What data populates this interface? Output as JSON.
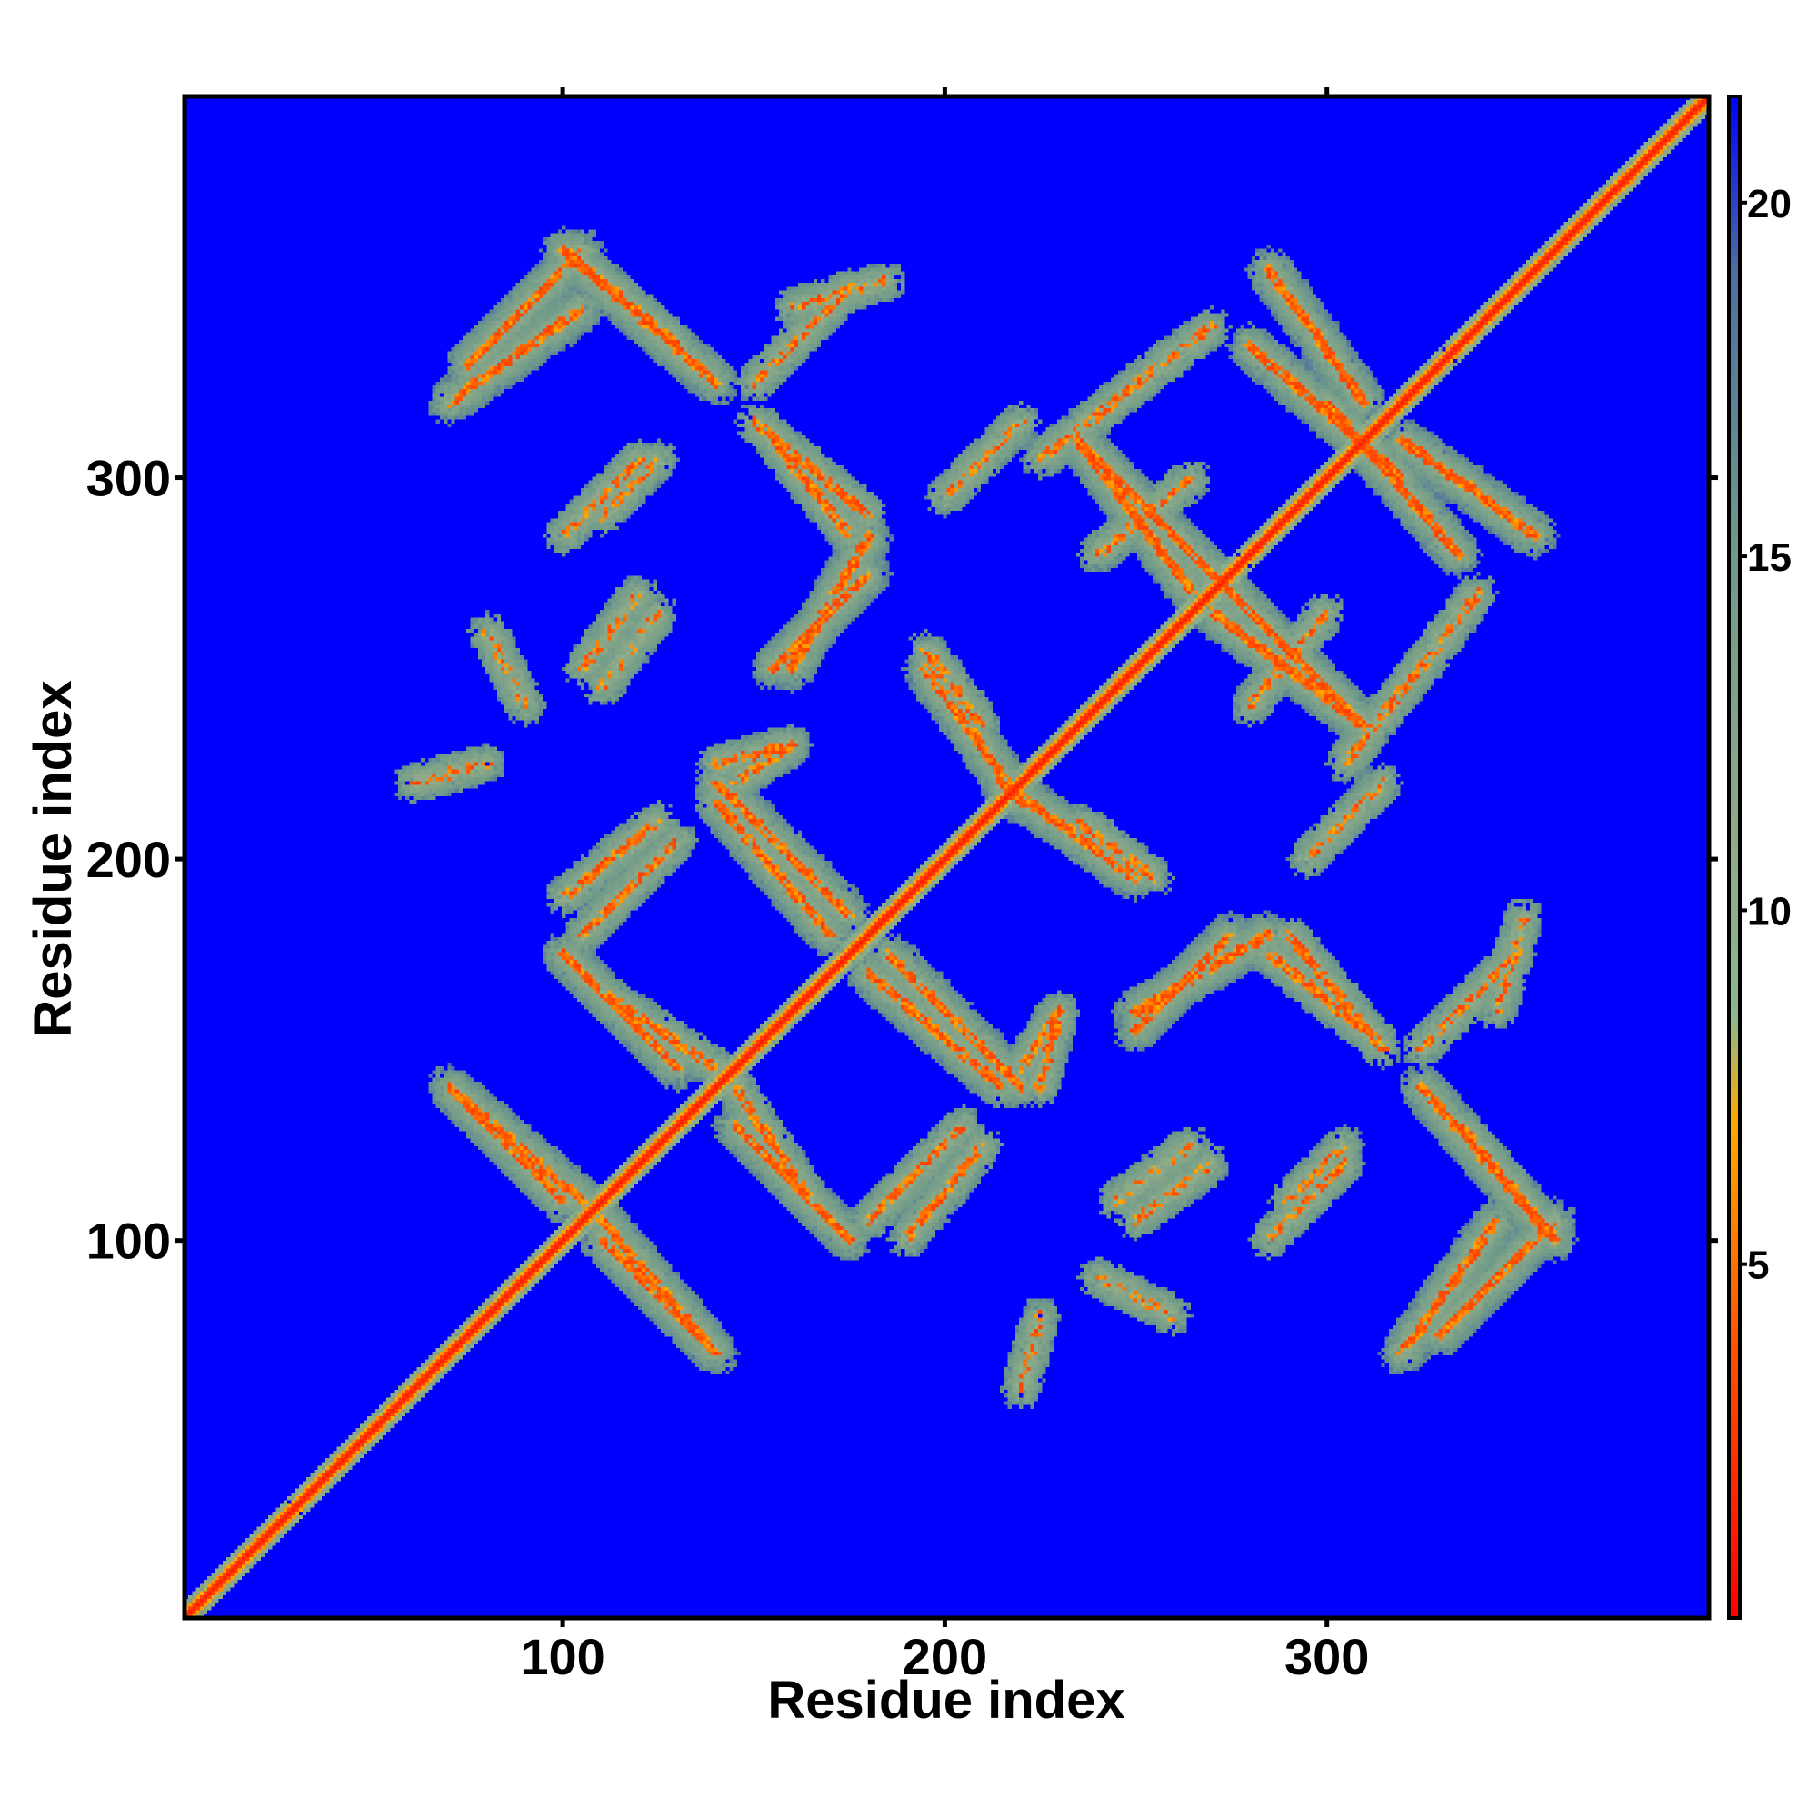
{
  "chart_data": {
    "type": "heatmap",
    "title": "",
    "xlabel": "Residue index",
    "ylabel": "Residue index",
    "xlim": [
      1,
      400
    ],
    "ylim": [
      1,
      400
    ],
    "x_ticks": [
      100,
      200,
      300
    ],
    "y_ticks": [
      100,
      200,
      300
    ],
    "x_tick_labels": [
      "100",
      "200",
      "300"
    ],
    "y_tick_labels": [
      "100",
      "200",
      "300"
    ],
    "colorbar": {
      "range": [
        0,
        21.5
      ],
      "ticks": [
        5,
        10,
        15,
        20
      ],
      "tick_labels": [
        "5",
        "10",
        "15",
        "20"
      ],
      "stops": [
        {
          "value": 0,
          "color": "#ff0000"
        },
        {
          "value": 4,
          "color": "#ff5500"
        },
        {
          "value": 7,
          "color": "#ffaa00"
        },
        {
          "value": 8.5,
          "color": "#8cb88c"
        },
        {
          "value": 11,
          "color": "#8faa88"
        },
        {
          "value": 15,
          "color": "#6f9a8a"
        },
        {
          "value": 19,
          "color": "#4f6fa0"
        },
        {
          "value": 21.5,
          "color": "#0000ff"
        }
      ]
    },
    "background_value": 21.5,
    "diagonal": {
      "core_value": 1.5,
      "halfwidth": 4
    },
    "contact_bands": [
      {
        "center": [
          75,
          330
        ],
        "end": [
          105,
          360
        ],
        "strength": 0.8
      },
      {
        "center": [
          100,
          360
        ],
        "end": [
          130,
          335
        ],
        "strength": 0.7
      },
      {
        "center": [
          160,
          345
        ],
        "end": [
          185,
          352
        ],
        "strength": 0.4
      },
      {
        "center": [
          110,
          290
        ],
        "end": [
          125,
          305
        ],
        "strength": 0.4
      },
      {
        "center": [
          150,
          315
        ],
        "end": [
          180,
          290
        ],
        "strength": 0.7
      },
      {
        "center": [
          155,
          250
        ],
        "end": [
          180,
          275
        ],
        "strength": 0.8
      },
      {
        "center": [
          195,
          255
        ],
        "end": [
          210,
          235
        ],
        "strength": 0.6
      },
      {
        "center": [
          140,
          225
        ],
        "end": [
          160,
          230
        ],
        "strength": 0.6
      },
      {
        "center": [
          140,
          220
        ],
        "end": [
          175,
          185
        ],
        "strength": 0.8
      },
      {
        "center": [
          100,
          190
        ],
        "end": [
          125,
          210
        ],
        "strength": 0.6
      },
      {
        "center": [
          110,
          165
        ],
        "end": [
          140,
          145
        ],
        "strength": 0.7
      },
      {
        "center": [
          70,
          140
        ],
        "end": [
          105,
          110
        ],
        "strength": 0.8
      },
      {
        "center": [
          110,
          100
        ],
        "end": [
          135,
          75
        ],
        "strength": 0.8
      },
      {
        "center": [
          145,
          130
        ],
        "end": [
          175,
          100
        ],
        "strength": 0.8
      },
      {
        "center": [
          180,
          170
        ],
        "end": [
          215,
          140
        ],
        "strength": 0.8
      },
      {
        "center": [
          180,
          105
        ],
        "end": [
          205,
          130
        ],
        "strength": 0.6
      },
      {
        "center": [
          220,
          145
        ],
        "end": [
          230,
          160
        ],
        "strength": 0.5
      },
      {
        "center": [
          215,
          220
        ],
        "end": [
          250,
          195
        ],
        "strength": 0.8
      },
      {
        "center": [
          235,
          310
        ],
        "end": [
          275,
          270
        ],
        "strength": 0.9
      },
      {
        "center": [
          270,
          265
        ],
        "end": [
          310,
          235
        ],
        "strength": 0.9
      },
      {
        "center": [
          280,
          335
        ],
        "end": [
          320,
          300
        ],
        "strength": 0.9
      },
      {
        "center": [
          320,
          310
        ],
        "end": [
          355,
          285
        ],
        "strength": 0.9
      },
      {
        "center": [
          250,
          160
        ],
        "end": [
          285,
          180
        ],
        "strength": 0.8
      },
      {
        "center": [
          285,
          175
        ],
        "end": [
          310,
          155
        ],
        "strength": 0.7
      },
      {
        "center": [
          325,
          140
        ],
        "end": [
          360,
          100
        ],
        "strength": 0.8
      },
      {
        "center": [
          320,
          70
        ],
        "end": [
          345,
          105
        ],
        "strength": 0.8
      },
      {
        "center": [
          285,
          100
        ],
        "end": [
          305,
          120
        ],
        "strength": 0.5
      },
      {
        "center": [
          325,
          150
        ],
        "end": [
          350,
          175
        ],
        "strength": 0.5
      },
      {
        "center": [
          250,
          105
        ],
        "end": [
          270,
          120
        ],
        "strength": 0.4
      },
      {
        "center": [
          200,
          295
        ],
        "end": [
          220,
          315
        ],
        "strength": 0.4
      },
      {
        "center": [
          225,
          305
        ],
        "end": [
          270,
          340
        ],
        "strength": 0.5
      },
      {
        "center": [
          280,
          240
        ],
        "end": [
          300,
          265
        ],
        "strength": 0.5
      },
      {
        "center": [
          80,
          260
        ],
        "end": [
          90,
          240
        ],
        "strength": 0.3
      },
      {
        "center": [
          110,
          245
        ],
        "end": [
          125,
          265
        ],
        "strength": 0.3
      },
      {
        "center": [
          60,
          220
        ],
        "end": [
          80,
          225
        ],
        "strength": 0.3
      }
    ]
  }
}
